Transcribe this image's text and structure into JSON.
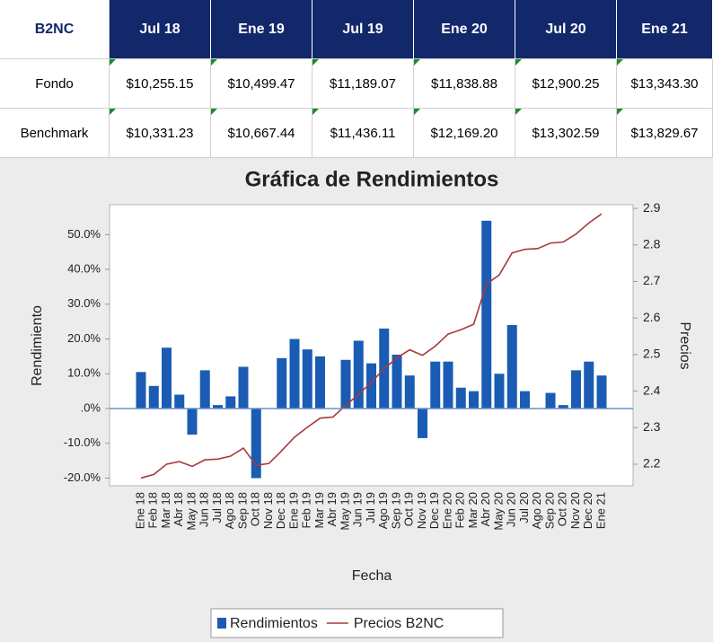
{
  "table": {
    "header": [
      "B2NC",
      "Jul 18",
      "Ene 19",
      "Jul 19",
      "Ene 20",
      "Jul 20",
      "Ene 21"
    ],
    "rows": [
      [
        "Fondo",
        "$10,255.15",
        "$10,499.47",
        "$11,189.07",
        "$11,838.88",
        "$12,900.25",
        "$13,343.30"
      ],
      [
        "Benchmark",
        "$10,331.23",
        "$10,667.44",
        "$11,436.11",
        "$12,169.20",
        "$13,302.59",
        "$13,829.67"
      ]
    ]
  },
  "chart_data": {
    "type": "combo",
    "title": "Gráfica de Rendimientos",
    "x_label": "Fecha",
    "y_label": "Rendimiento",
    "y2_label": "Precios",
    "categories": [
      "Ene 18",
      "Feb 18",
      "Mar 18",
      "Abr 18",
      "May 18",
      "Jun 18",
      "Jul 18",
      "Ago 18",
      "Sep 18",
      "Oct 18",
      "Nov 18",
      "Dec 18",
      "Ene 19",
      "Feb 19",
      "Mar 19",
      "Abr 19",
      "May 19",
      "Jun 19",
      "Jul 19",
      "Ago 19",
      "Sep 19",
      "Oct 19",
      "Nov 19",
      "Dec 19",
      "Ene 20",
      "Feb 20",
      "Mar 20",
      "Abr 20",
      "May 20",
      "Jun 20",
      "Jul 20",
      "Ago 20",
      "Sep 20",
      "Oct 20",
      "Nov 20",
      "Dec 20",
      "Ene 21"
    ],
    "series": [
      {
        "name": "Rendimientos",
        "type": "bar",
        "color": "#1a5cb4",
        "values": [
          10.5,
          6.5,
          17.5,
          4,
          -7.5,
          11,
          1,
          3.5,
          12,
          -20,
          0,
          14.5,
          20,
          17,
          15,
          0,
          14,
          19.5,
          13,
          23,
          15.5,
          9.5,
          -8.5,
          13.5,
          13.5,
          6,
          5,
          54,
          10,
          24,
          5,
          0,
          4.5,
          1,
          11,
          13.5,
          9.5
        ]
      },
      {
        "name": "Precios B2NC",
        "type": "line",
        "axis": "y2",
        "color": "#a83a3a",
        "values": [
          2.162,
          2.172,
          2.2,
          2.207,
          2.194,
          2.212,
          2.214,
          2.222,
          2.244,
          2.197,
          2.202,
          2.237,
          2.274,
          2.301,
          2.326,
          2.329,
          2.361,
          2.391,
          2.424,
          2.461,
          2.491,
          2.513,
          2.498,
          2.523,
          2.556,
          2.568,
          2.583,
          2.693,
          2.718,
          2.778,
          2.788,
          2.79,
          2.805,
          2.808,
          2.83,
          2.86,
          2.885
        ]
      }
    ],
    "ylim": [
      -22.2,
      58.6
    ],
    "yticks": [
      {
        "value": -20,
        "label": "-20.0%"
      },
      {
        "value": -10,
        "label": "-10.0%"
      },
      {
        "value": 0,
        "label": ".0%"
      },
      {
        "value": 10,
        "label": "10.0%"
      },
      {
        "value": 20,
        "label": "20.0%"
      },
      {
        "value": 30,
        "label": "30.0%"
      },
      {
        "value": 40,
        "label": "40.0%"
      },
      {
        "value": 50,
        "label": "50.0%"
      }
    ],
    "y2lim": [
      2.141,
      2.91
    ],
    "y2ticks": [
      2.2,
      2.3,
      2.4,
      2.5,
      2.6,
      2.7,
      2.8,
      2.9
    ],
    "legend": "bottom"
  }
}
